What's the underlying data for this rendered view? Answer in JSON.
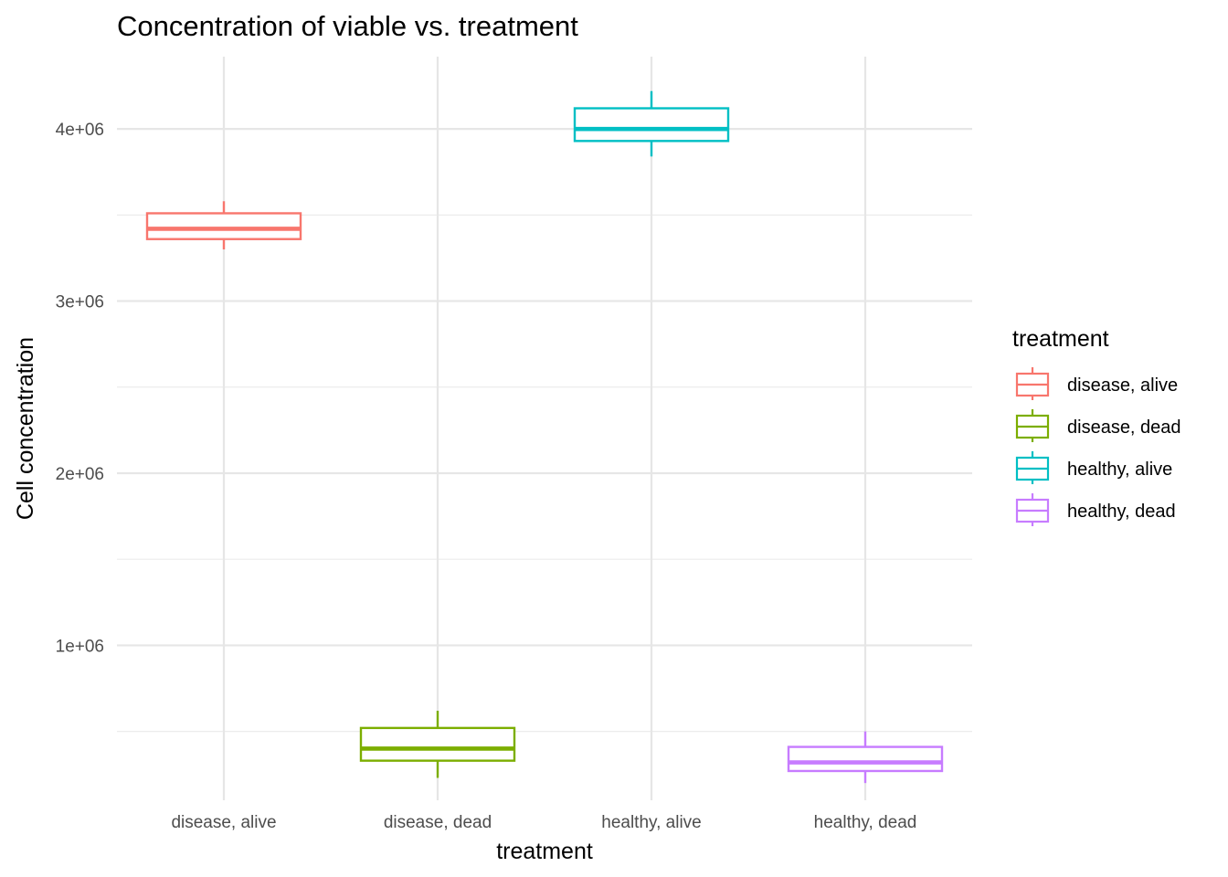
{
  "chart_data": {
    "type": "boxplot",
    "title": "Concentration of viable vs. treatment",
    "xlabel": "treatment",
    "ylabel": "Cell concentration",
    "categories": [
      "disease, alive",
      "disease, dead",
      "healthy, alive",
      "healthy, dead"
    ],
    "colors": [
      "#F8766D",
      "#7CAE00",
      "#00BFC4",
      "#C77CFF"
    ],
    "boxes": [
      {
        "category": "disease, alive",
        "min": 3300000,
        "q1": 3360000,
        "median": 3420000,
        "q3": 3510000,
        "max": 3580000
      },
      {
        "category": "disease, dead",
        "min": 230000,
        "q1": 330000,
        "median": 400000,
        "q3": 520000,
        "max": 620000
      },
      {
        "category": "healthy, alive",
        "min": 3840000,
        "q1": 3930000,
        "median": 4000000,
        "q3": 4120000,
        "max": 4220000
      },
      {
        "category": "healthy, dead",
        "min": 200000,
        "q1": 270000,
        "median": 320000,
        "q3": 410000,
        "max": 500000
      }
    ],
    "y_ticks": [
      1000000,
      2000000,
      3000000,
      4000000
    ],
    "y_tick_labels": [
      "1e+06",
      "2e+06",
      "3e+06",
      "4e+06"
    ],
    "ylim": [
      100000,
      4420000
    ],
    "grid": true,
    "legend": {
      "title": "treatment",
      "position": "right",
      "entries": [
        "disease, alive",
        "disease, dead",
        "healthy, alive",
        "healthy, dead"
      ]
    }
  }
}
